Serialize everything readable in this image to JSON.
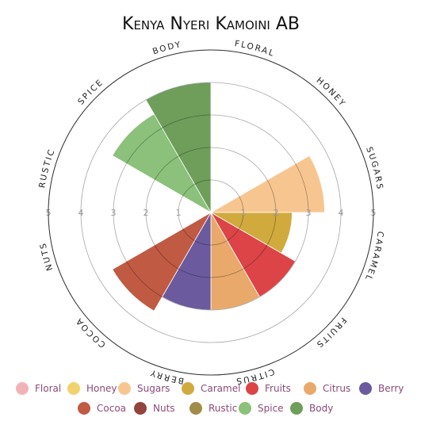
{
  "chart_data": {
    "type": "polar_area",
    "title": "Kenya Nyeri Kamoini AB",
    "categories": [
      "Floral",
      "Honey",
      "Sugars",
      "Caramel",
      "Fruits",
      "Citrus",
      "Berry",
      "Cocoa",
      "Nuts",
      "Rustic",
      "Spice",
      "Body"
    ],
    "values": [
      0,
      0,
      3.5,
      2.5,
      3,
      3,
      3,
      3.5,
      0,
      0,
      3.5,
      4
    ],
    "colors": [
      "#f0b4b8",
      "#f2d26e",
      "#f7c690",
      "#d1aa3e",
      "#dc4447",
      "#e9a96a",
      "#6b5a9e",
      "#c05a43",
      "#93443f",
      "#a08d4a",
      "#8bc17a",
      "#6e9e5a"
    ],
    "rlim": [
      0,
      5
    ],
    "rticks": [
      1,
      2,
      3,
      4,
      5
    ],
    "grid": true
  }
}
